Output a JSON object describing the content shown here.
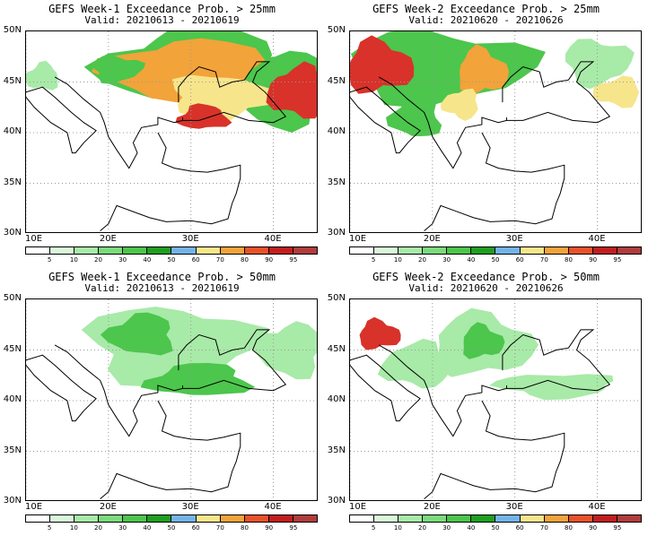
{
  "panels": [
    {
      "title": "GEFS Week-1 Exceedance Prob. > 25mm",
      "valid": "Valid: 20210613 - 20210619",
      "blobs": [
        {
          "lon": 30.5,
          "lat": 46.5,
          "rx": 11,
          "ry": 3.8,
          "c": "green"
        },
        {
          "lon": 41,
          "lat": 44.5,
          "rx": 6,
          "ry": 3.8,
          "c": "green"
        },
        {
          "lon": 29.5,
          "lat": 46,
          "rx": 9.5,
          "ry": 3.2,
          "c": "orange"
        },
        {
          "lon": 33.5,
          "lat": 43.5,
          "rx": 6,
          "ry": 2.2,
          "c": "yellow"
        },
        {
          "lon": 43,
          "lat": 44,
          "rx": 3.5,
          "ry": 2.5,
          "c": "red"
        },
        {
          "lon": 31.5,
          "lat": 41.5,
          "rx": 3,
          "ry": 1.2,
          "c": "red"
        },
        {
          "lon": 21,
          "lat": 46.3,
          "rx": 3,
          "ry": 1.3,
          "c": "green"
        },
        {
          "lon": 12,
          "lat": 45.5,
          "rx": 2,
          "ry": 1.3,
          "c": "lgreen"
        }
      ]
    },
    {
      "title": "GEFS Week-2 Exceedance Prob. > 25mm",
      "valid": "Valid: 20210620 - 20210626",
      "blobs": [
        {
          "lon": 21,
          "lat": 46.5,
          "rx": 11,
          "ry": 3.5,
          "c": "green"
        },
        {
          "lon": 13.5,
          "lat": 46.5,
          "rx": 4,
          "ry": 2.5,
          "c": "red"
        },
        {
          "lon": 26,
          "lat": 46,
          "rx": 3,
          "ry": 2.2,
          "c": "orange"
        },
        {
          "lon": 23.5,
          "lat": 42.8,
          "rx": 2.2,
          "ry": 1.4,
          "c": "yellow"
        },
        {
          "lon": 42.5,
          "lat": 44,
          "rx": 2.8,
          "ry": 1.4,
          "c": "yellow"
        },
        {
          "lon": 18,
          "lat": 41.5,
          "rx": 3,
          "ry": 2,
          "c": "green"
        },
        {
          "lon": 40,
          "lat": 47,
          "rx": 4,
          "ry": 2.2,
          "c": "lgreen"
        }
      ]
    },
    {
      "title": "GEFS Week-1 Exceedance Prob. > 50mm",
      "valid": "Valid: 20210613 - 20210619",
      "blobs": [
        {
          "lon": 27.5,
          "lat": 45.5,
          "rx": 10,
          "ry": 3.8,
          "c": "lgreen"
        },
        {
          "lon": 24,
          "lat": 46.5,
          "rx": 4,
          "ry": 2,
          "c": "green"
        },
        {
          "lon": 31,
          "lat": 42,
          "rx": 6,
          "ry": 1.6,
          "c": "green"
        },
        {
          "lon": 42,
          "lat": 45,
          "rx": 4,
          "ry": 2.6,
          "c": "lgreen"
        }
      ]
    },
    {
      "title": "GEFS Week-2 Exceedance Prob. > 50mm",
      "valid": "Valid: 20210620 - 20210626",
      "blobs": [
        {
          "lon": 26,
          "lat": 45.5,
          "rx": 6,
          "ry": 3,
          "c": "lgreen"
        },
        {
          "lon": 26,
          "lat": 45.8,
          "rx": 2.5,
          "ry": 1.6,
          "c": "green"
        },
        {
          "lon": 13.5,
          "lat": 46.5,
          "rx": 2.5,
          "ry": 1.4,
          "c": "red"
        },
        {
          "lon": 18,
          "lat": 43.5,
          "rx": 4,
          "ry": 2.2,
          "c": "lgreen"
        },
        {
          "lon": 35,
          "lat": 41.5,
          "rx": 7,
          "ry": 1.2,
          "c": "lgreen"
        }
      ]
    }
  ],
  "lat_labels": [
    "50N",
    "45N",
    "40N",
    "35N",
    "30N"
  ],
  "lon_labels": [
    "10E",
    "20E",
    "30E",
    "40E"
  ],
  "colorbar_labels": [
    "5",
    "10",
    "20",
    "30",
    "40",
    "50",
    "60",
    "70",
    "80",
    "90",
    "95"
  ],
  "colorbar_colors": [
    "#ffffff",
    "#d9f7d9",
    "#a8eaa8",
    "#7bda7b",
    "#4cc64c",
    "#1f9f1f",
    "#74b3e8",
    "#f7e58c",
    "#f2a33a",
    "#e8512a",
    "#c21e1e",
    "#b03c3c"
  ],
  "fill_colors": {
    "lgreen": "#a8eaa8",
    "green": "#4cc64c",
    "yellow": "#f7e58c",
    "orange": "#f2a33a",
    "red": "#d8322a"
  }
}
